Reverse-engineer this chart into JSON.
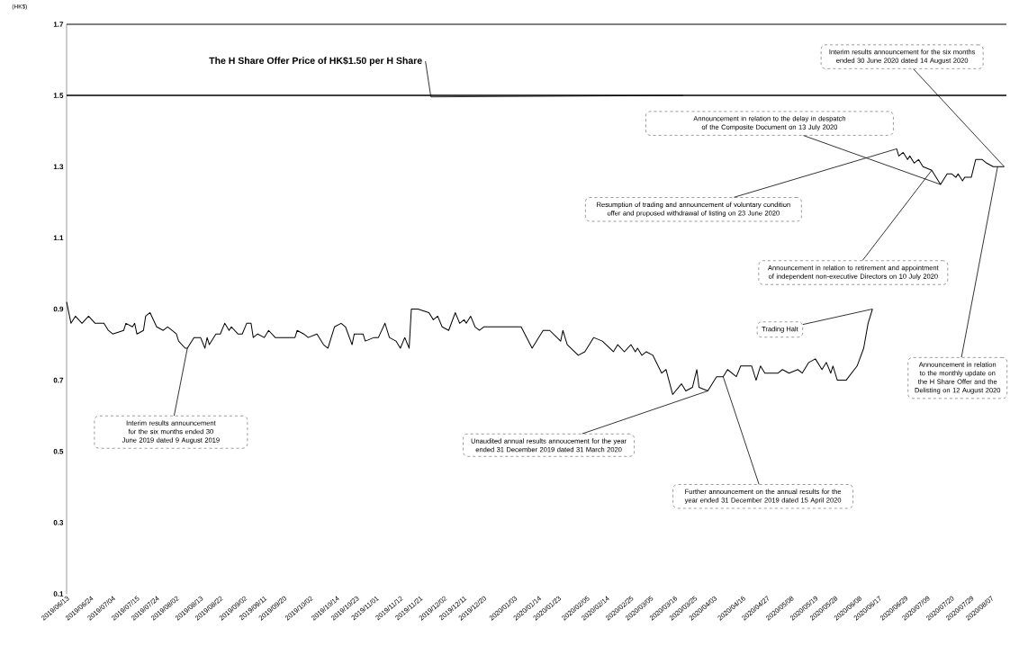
{
  "chart_data": {
    "type": "line",
    "ylabel": "(HK$)",
    "x": [
      "2019-06-13",
      "2019-06-15",
      "2019-06-17",
      "2019-06-20",
      "2019-06-23",
      "2019-06-26",
      "2019-06-30",
      "2019-07-02",
      "2019-07-04",
      "2019-07-09",
      "2019-07-10",
      "2019-07-13",
      "2019-07-14",
      "2019-07-15",
      "2019-07-18",
      "2019-07-19",
      "2019-07-21",
      "2019-07-24",
      "2019-07-27",
      "2019-07-29",
      "2019-07-31",
      "2019-08-02",
      "2019-08-03",
      "2019-08-06",
      "2019-08-07",
      "2019-08-10",
      "2019-08-13",
      "2019-08-15",
      "2019-08-16",
      "2019-08-17",
      "2019-08-20",
      "2019-08-22",
      "2019-08-24",
      "2019-08-26",
      "2019-08-27",
      "2019-08-30",
      "2019-09-01",
      "2019-09-03",
      "2019-09-05",
      "2019-09-06",
      "2019-09-08",
      "2019-09-11",
      "2019-09-13",
      "2019-09-16",
      "2019-09-25",
      "2019-09-26",
      "2019-09-29",
      "2019-10-01",
      "2019-10-05",
      "2019-10-08",
      "2019-10-10",
      "2019-10-13",
      "2019-10-16",
      "2019-10-18",
      "2019-10-21",
      "2019-10-22",
      "2019-10-26",
      "2019-10-27",
      "2019-10-31",
      "2019-11-02",
      "2019-11-05",
      "2019-11-07",
      "2019-11-10",
      "2019-11-12",
      "2019-11-14",
      "2019-11-16",
      "2019-11-17",
      "2019-11-20",
      "2019-11-25",
      "2019-11-27",
      "2019-11-29",
      "2019-12-01",
      "2019-12-04",
      "2019-12-07",
      "2019-12-09",
      "2019-12-11",
      "2019-12-12",
      "2019-12-14",
      "2019-12-16",
      "2019-12-18",
      "2019-12-20",
      "2020-01-06",
      "2020-01-11",
      "2020-01-16",
      "2020-01-19",
      "2020-01-24",
      "2020-01-25",
      "2020-01-27",
      "2020-02-01",
      "2020-02-04",
      "2020-02-08",
      "2020-02-12",
      "2020-02-17",
      "2020-02-19",
      "2020-02-22",
      "2020-02-25",
      "2020-02-27",
      "2020-02-28",
      "2020-03-01",
      "2020-03-03",
      "2020-03-06",
      "2020-03-10",
      "2020-03-12",
      "2020-03-15",
      "2020-03-19",
      "2020-03-21",
      "2020-03-24",
      "2020-03-26",
      "2020-03-27",
      "2020-03-31",
      "2020-04-04",
      "2020-04-07",
      "2020-04-09",
      "2020-04-13",
      "2020-04-15",
      "2020-04-20",
      "2020-04-22",
      "2020-04-24",
      "2020-04-26",
      "2020-05-02",
      "2020-05-04",
      "2020-05-07",
      "2020-05-11",
      "2020-05-13",
      "2020-05-16",
      "2020-05-19",
      "2020-05-22",
      "2020-05-24",
      "2020-05-26",
      "2020-05-27",
      "2020-05-29",
      "2020-06-02",
      "2020-06-07",
      "2020-06-10",
      "2020-06-12",
      "2020-06-14",
      "2020-06-18",
      "2020-06-25",
      "2020-06-26",
      "2020-06-28",
      "2020-06-30",
      "2020-07-01",
      "2020-07-03",
      "2020-07-05",
      "2020-07-07",
      "2020-07-11",
      "2020-07-15",
      "2020-07-18",
      "2020-07-20",
      "2020-07-22",
      "2020-07-23",
      "2020-07-25",
      "2020-07-26",
      "2020-07-29",
      "2020-07-31",
      "2020-08-03",
      "2020-08-05",
      "2020-08-08",
      "2020-08-10",
      "2020-08-11",
      "2020-08-13"
    ],
    "series": [
      {
        "color": "#000000",
        "values": [
          0.92,
          0.86,
          0.88,
          0.86,
          0.88,
          0.86,
          0.86,
          0.84,
          0.83,
          0.84,
          0.86,
          0.85,
          0.86,
          0.83,
          0.84,
          0.88,
          0.89,
          0.85,
          0.84,
          0.85,
          0.84,
          0.83,
          0.81,
          0.79,
          0.79,
          0.82,
          0.82,
          0.79,
          0.82,
          0.8,
          0.83,
          0.83,
          0.86,
          0.84,
          0.85,
          0.83,
          0.83,
          0.86,
          0.86,
          0.82,
          0.83,
          0.82,
          0.84,
          0.82,
          0.82,
          0.84,
          0.83,
          0.82,
          0.83,
          0.8,
          0.79,
          0.85,
          0.86,
          0.85,
          0.8,
          0.83,
          0.83,
          0.81,
          0.82,
          0.82,
          0.86,
          0.82,
          0.81,
          0.79,
          0.82,
          0.79,
          0.9,
          0.9,
          0.89,
          0.87,
          0.88,
          0.85,
          0.84,
          0.89,
          0.86,
          0.87,
          0.86,
          0.88,
          0.85,
          0.84,
          0.85,
          0.85,
          0.79,
          0.84,
          0.84,
          0.81,
          0.84,
          0.8,
          0.77,
          0.78,
          0.82,
          0.81,
          0.78,
          0.8,
          0.78,
          0.8,
          0.78,
          0.79,
          0.77,
          0.78,
          0.77,
          0.72,
          0.73,
          0.66,
          0.69,
          0.67,
          0.68,
          0.73,
          0.68,
          0.67,
          0.71,
          0.71,
          0.73,
          0.71,
          0.74,
          0.74,
          0.7,
          0.74,
          0.72,
          0.72,
          0.73,
          0.72,
          0.73,
          0.72,
          0.75,
          0.76,
          0.73,
          0.75,
          0.72,
          0.74,
          0.7,
          0.7,
          0.74,
          0.79,
          0.86,
          0.9,
          null,
          1.35,
          1.33,
          1.34,
          1.32,
          1.33,
          1.31,
          1.32,
          1.3,
          1.29,
          1.25,
          1.28,
          1.28,
          1.27,
          1.28,
          1.26,
          1.27,
          1.27,
          1.32,
          1.32,
          1.31,
          1.3,
          1.3,
          1.3,
          1.3
        ]
      }
    ],
    "xlim": [
      "2019-06-13",
      "2020-08-14"
    ],
    "xticks": [
      {
        "value": "2019-06-13",
        "label": "2019/06/13"
      },
      {
        "value": "2019-06-24",
        "label": "2019/06/24"
      },
      {
        "value": "2019-07-04",
        "label": "2019/07/04"
      },
      {
        "value": "2019-07-15",
        "label": "2019/07/15"
      },
      {
        "value": "2019-07-24",
        "label": "2019/07/24"
      },
      {
        "value": "2019-08-02",
        "label": "2019/08/02"
      },
      {
        "value": "2019-08-13",
        "label": "2019/08/13"
      },
      {
        "value": "2019-08-22",
        "label": "2019/08/22"
      },
      {
        "value": "2019-09-02",
        "label": "2019/09/02"
      },
      {
        "value": "2019-09-11",
        "label": "2019/09/11"
      },
      {
        "value": "2019-09-20",
        "label": "2019/09/20"
      },
      {
        "value": "2019-10-02",
        "label": "2019/10/02"
      },
      {
        "value": "2019-10-14",
        "label": "2019/10/14"
      },
      {
        "value": "2019-10-23",
        "label": "2019/10/23"
      },
      {
        "value": "2019-11-01",
        "label": "2019/11/01"
      },
      {
        "value": "2019-11-12",
        "label": "2019/11/12"
      },
      {
        "value": "2019-11-21",
        "label": "2019/11/21"
      },
      {
        "value": "2019-12-02",
        "label": "2019/12/02"
      },
      {
        "value": "2019-12-11",
        "label": "2019/12/11"
      },
      {
        "value": "2019-12-20",
        "label": "2019/12/20"
      },
      {
        "value": "2020-01-03",
        "label": "2020/01/03"
      },
      {
        "value": "2020-01-14",
        "label": "2020/01/14"
      },
      {
        "value": "2020-01-23",
        "label": "2020/01/23"
      },
      {
        "value": "2020-02-05",
        "label": "2020/02/05"
      },
      {
        "value": "2020-02-14",
        "label": "2020/02/14"
      },
      {
        "value": "2020-02-25",
        "label": "2020/02/25"
      },
      {
        "value": "2020-03-05",
        "label": "2020/03/05"
      },
      {
        "value": "2020-03-16",
        "label": "2020/03/16"
      },
      {
        "value": "2020-03-25",
        "label": "2020/03/25"
      },
      {
        "value": "2020-04-03",
        "label": "2020/04/03"
      },
      {
        "value": "2020-04-16",
        "label": "2020/04/16"
      },
      {
        "value": "2020-04-27",
        "label": "2020/04/27"
      },
      {
        "value": "2020-05-08",
        "label": "2020/05/08"
      },
      {
        "value": "2020-05-19",
        "label": "2020/05/19"
      },
      {
        "value": "2020-05-28",
        "label": "2020/05/28"
      },
      {
        "value": "2020-06-08",
        "label": "2020/06/08"
      },
      {
        "value": "2020-06-17",
        "label": "2020/06/17"
      },
      {
        "value": "2020-06-29",
        "label": "2020/06/29"
      },
      {
        "value": "2020-07-09",
        "label": "2020/07/09"
      },
      {
        "value": "2020-07-20",
        "label": "2020/07/20"
      },
      {
        "value": "2020-07-29",
        "label": "2020/07/29"
      },
      {
        "value": "2020-08-07",
        "label": "2020/08/07"
      }
    ],
    "ylim": [
      0.1,
      1.7
    ],
    "yticks": [
      0.1,
      0.3,
      0.5,
      0.7,
      0.9,
      1.1,
      1.3,
      1.5,
      1.7
    ],
    "ref_lines": [
      {
        "axis": "y",
        "value": 1.5,
        "label": "The H Share Offer Price of HK$1.50 per H Share",
        "color": "#000000"
      }
    ],
    "annotations": [
      {
        "text": "Interim results announcement for the six months ended 30 June 2019 dated 9 August 2019",
        "x": "2019-08-07",
        "y": 0.79
      },
      {
        "text": "Unaudited annual results annoucement for the year ended 31 December 2019 dated 31 March 2020",
        "x": "2020-03-31",
        "y": 0.67
      },
      {
        "text": "Further announcement on the annual results for the year ended 31 December 2019 dated 15 April 2020",
        "x": "2020-04-07",
        "y": 0.71
      },
      {
        "text": "Trading Halt",
        "x": "2020-06-14",
        "y": 0.9
      },
      {
        "text": "Resumption of trading and announcement of voluntary condition offer and proposed withdrawal of listing on 23 June 2020",
        "x": "2020-06-25",
        "y": 1.35
      },
      {
        "text": "Announcement in relation to the delay in despatch of the Composite Document on 13 July 2020",
        "x": "2020-07-15",
        "y": 1.25
      },
      {
        "text": "Announcement in relation to retirement and appointment of independent non-executive Directors on 10 July 2020",
        "x": "2020-07-11",
        "y": 1.29
      },
      {
        "text": "Interim results announcement for the six months ended 30 June 2020 dated 14 August 2020",
        "x": "2020-08-13",
        "y": 1.3
      },
      {
        "text": "Announcement in relation to the monthly update on the H Share Offer and the Delisting on 12 August 2020",
        "x": "2020-08-10",
        "y": 1.3
      }
    ]
  }
}
